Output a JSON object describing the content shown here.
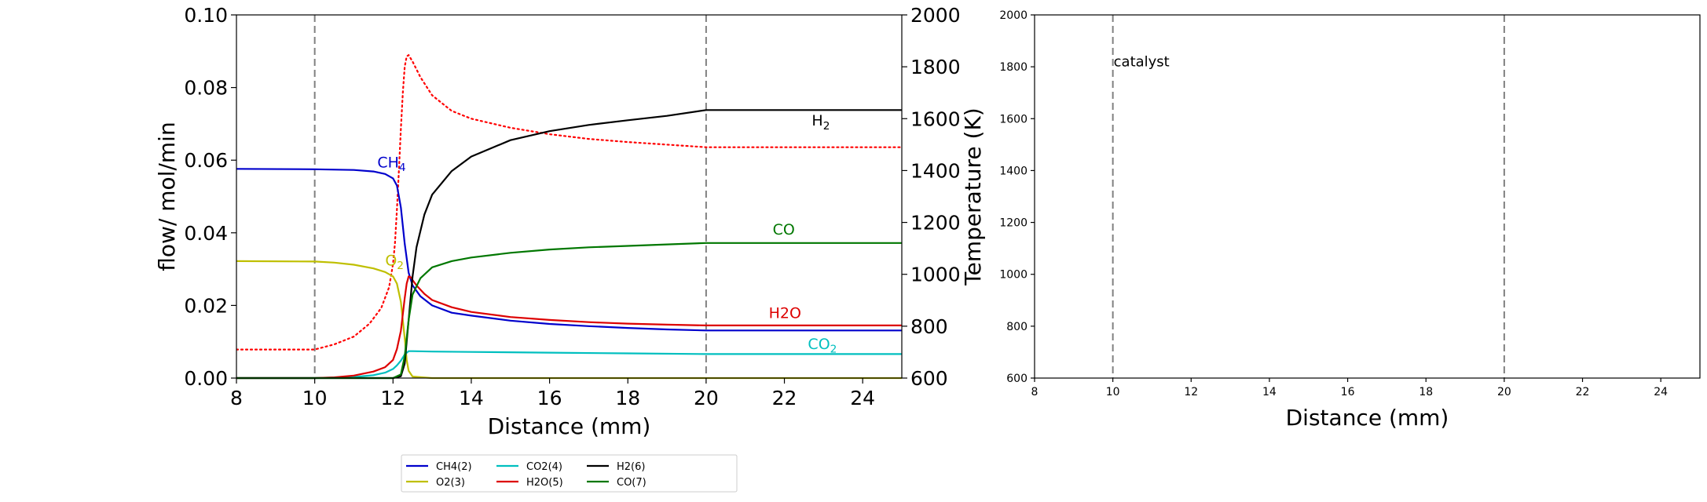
{
  "chart_data": [
    {
      "type": "line",
      "xlabel": "Distance (mm)",
      "ylabel": "flow/ mol/min",
      "y2label": "Temperature (K)",
      "xlim": [
        8,
        25
      ],
      "ylim": [
        0,
        0.1
      ],
      "y2lim": [
        600,
        2000
      ],
      "xticks": [
        "8",
        "10",
        "12",
        "14",
        "16",
        "18",
        "20",
        "22",
        "24"
      ],
      "yticks": [
        "0.00",
        "0.02",
        "0.04",
        "0.06",
        "0.08",
        "0.10"
      ],
      "y2ticks": [
        "600",
        "800",
        "1000",
        "1200",
        "1400",
        "1600",
        "1800",
        "2000"
      ],
      "catalyst_bounds": [
        10,
        20
      ],
      "grid": false,
      "legend_position": "below",
      "series": [
        {
          "name": "CH4(2)",
          "color": "#0000cc",
          "label": "CH4",
          "label_sub": "4",
          "label_pos": [
            11.6,
            0.058
          ],
          "x": [
            8,
            10,
            11,
            11.5,
            11.8,
            12,
            12.1,
            12.2,
            12.3,
            12.4,
            12.5,
            12.7,
            13,
            13.5,
            14,
            15,
            16,
            17,
            18,
            19,
            20,
            21,
            22,
            23,
            24,
            25
          ],
          "y": [
            0.0576,
            0.0575,
            0.0573,
            0.0569,
            0.0562,
            0.055,
            0.053,
            0.047,
            0.037,
            0.029,
            0.0255,
            0.0225,
            0.02,
            0.018,
            0.0172,
            0.0158,
            0.0149,
            0.0143,
            0.0138,
            0.0134,
            0.0131,
            0.0131,
            0.0131,
            0.0131,
            0.0131,
            0.0131
          ]
        },
        {
          "name": "O2(3)",
          "color": "#bfbf00",
          "label": "O2",
          "label_sub": "2",
          "label_pos": [
            11.8,
            0.031
          ],
          "x": [
            8,
            10,
            10.5,
            11,
            11.5,
            11.8,
            12,
            12.1,
            12.2,
            12.3,
            12.35,
            12.4,
            12.5,
            13,
            25
          ],
          "y": [
            0.0322,
            0.0321,
            0.0318,
            0.0312,
            0.0302,
            0.0292,
            0.028,
            0.026,
            0.021,
            0.011,
            0.005,
            0.002,
            0.0004,
            0.0,
            0.0
          ]
        },
        {
          "name": "CO2(4)",
          "color": "#00bfbf",
          "label": "CO2",
          "label_sub": "2",
          "label_pos": [
            22.6,
            0.008
          ],
          "x": [
            8,
            10,
            11,
            11.5,
            11.8,
            12,
            12.1,
            12.2,
            12.3,
            12.4,
            12.5,
            13,
            14,
            16,
            18,
            20,
            22,
            25
          ],
          "y": [
            0.0,
            0.0,
            0.0003,
            0.0008,
            0.0015,
            0.0025,
            0.0035,
            0.0048,
            0.0065,
            0.0074,
            0.0074,
            0.0073,
            0.0072,
            0.007,
            0.0068,
            0.0066,
            0.0066,
            0.0066
          ]
        },
        {
          "name": "H2O(5)",
          "color": "#dd0000",
          "label": "H2O",
          "label_sub": "2",
          "label_pos": [
            21.6,
            0.0165
          ],
          "x": [
            8,
            10,
            10.5,
            11,
            11.5,
            11.8,
            12,
            12.1,
            12.2,
            12.3,
            12.35,
            12.4,
            12.45,
            12.5,
            12.6,
            12.8,
            13,
            13.5,
            14,
            15,
            16,
            17,
            18,
            19,
            20,
            21,
            22,
            23,
            24,
            25
          ],
          "y": [
            0.0,
            0.0,
            0.0002,
            0.0007,
            0.0018,
            0.003,
            0.005,
            0.008,
            0.013,
            0.022,
            0.026,
            0.028,
            0.0278,
            0.027,
            0.0255,
            0.0232,
            0.0215,
            0.0195,
            0.0182,
            0.0168,
            0.016,
            0.0154,
            0.015,
            0.0147,
            0.0145,
            0.0145,
            0.0145,
            0.0145,
            0.0145,
            0.0145
          ]
        },
        {
          "name": "H2(6)",
          "color": "#000000",
          "label": "H2",
          "label_sub": "2",
          "label_pos": [
            22.7,
            0.0695
          ],
          "x": [
            8,
            12,
            12.2,
            12.3,
            12.4,
            12.5,
            12.6,
            12.8,
            13,
            13.5,
            14,
            15,
            16,
            17,
            18,
            19,
            20,
            21,
            22,
            23,
            24,
            25
          ],
          "y": [
            0.0,
            0.0,
            0.0005,
            0.004,
            0.016,
            0.028,
            0.036,
            0.045,
            0.0505,
            0.057,
            0.061,
            0.0655,
            0.068,
            0.0697,
            0.071,
            0.0722,
            0.0738,
            0.0738,
            0.0738,
            0.0738,
            0.0738,
            0.0738
          ]
        },
        {
          "name": "CO(7)",
          "color": "#007700",
          "label": "CO",
          "label_sub": "",
          "label_pos": [
            21.7,
            0.0395
          ],
          "x": [
            8,
            12,
            12.2,
            12.3,
            12.4,
            12.5,
            12.7,
            13,
            13.5,
            14,
            15,
            16,
            17,
            18,
            19,
            20,
            21,
            22,
            23,
            24,
            25
          ],
          "y": [
            0.0,
            0.0,
            0.001,
            0.006,
            0.016,
            0.023,
            0.0275,
            0.0305,
            0.0322,
            0.0332,
            0.0345,
            0.0354,
            0.036,
            0.0364,
            0.0368,
            0.0372,
            0.0372,
            0.0372,
            0.0372,
            0.0372,
            0.0372
          ]
        }
      ],
      "temperature": {
        "color": "#ff0000",
        "style": "dotted",
        "axis": "right",
        "x": [
          8,
          10,
          10.5,
          11,
          11.4,
          11.7,
          11.9,
          12.0,
          12.05,
          12.1,
          12.15,
          12.2,
          12.25,
          12.3,
          12.35,
          12.4,
          12.5,
          12.7,
          13,
          13.5,
          14,
          15,
          16,
          17,
          18,
          19,
          20,
          21,
          22,
          23,
          24,
          25
        ],
        "y": [
          710,
          710,
          730,
          760,
          810,
          870,
          950,
          1040,
          1120,
          1250,
          1400,
          1560,
          1700,
          1800,
          1840,
          1845,
          1820,
          1760,
          1690,
          1630,
          1600,
          1565,
          1540,
          1522,
          1510,
          1500,
          1490,
          1490,
          1490,
          1490,
          1490,
          1490
        ]
      }
    },
    {
      "type": "line",
      "xlabel": "Distance (mm)",
      "ylabel": "",
      "xlim": [
        8,
        25
      ],
      "ylim": [
        600,
        2000
      ],
      "xticks": [
        "8",
        "10",
        "12",
        "14",
        "16",
        "18",
        "20",
        "22",
        "24"
      ],
      "yticks": [
        "600",
        "800",
        "1000",
        "1200",
        "1400",
        "1600",
        "1800",
        "2000"
      ],
      "catalyst_bounds": [
        10,
        20
      ],
      "annotation": {
        "text": "catalyst",
        "x": 10,
        "y": 1820
      },
      "series": []
    }
  ]
}
